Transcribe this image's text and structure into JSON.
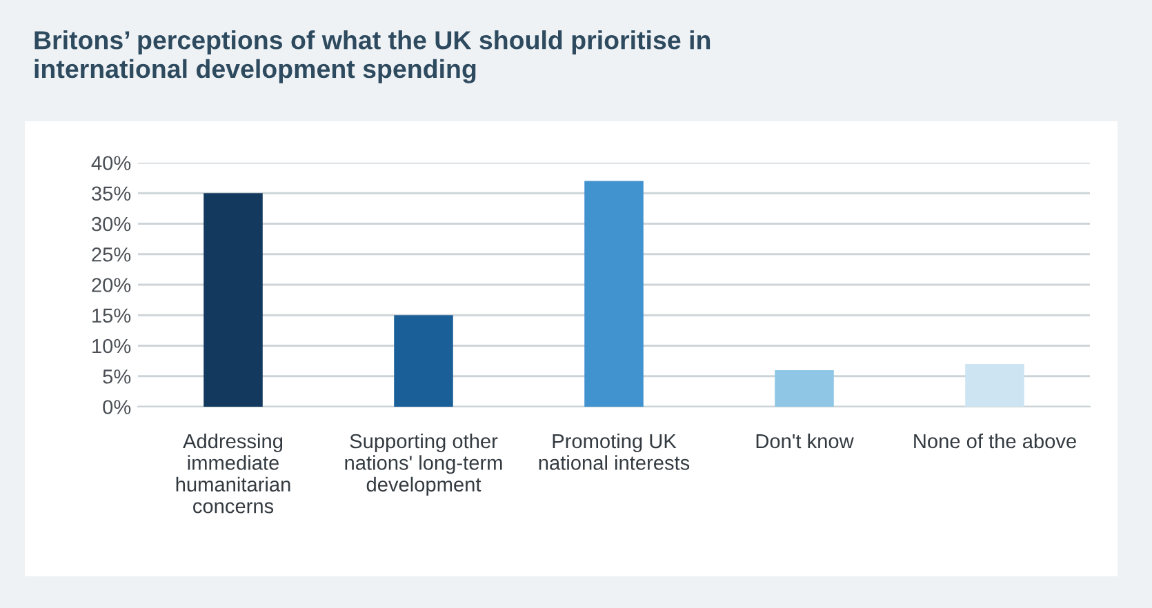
{
  "chart_data": {
    "type": "bar",
    "title": "Britons’ perceptions of what the UK should prioritise in international development spending",
    "categories": [
      "Addressing immediate humanitarian concerns",
      "Supporting other nations' long-term development",
      "Promoting UK national interests",
      "Don't know",
      "None of the above"
    ],
    "values": [
      35,
      15,
      37,
      6,
      7
    ],
    "colors": [
      "#133a5e",
      "#1b5f99",
      "#4193d0",
      "#8fc6e6",
      "#cde5f2"
    ],
    "ylim": [
      0,
      40
    ],
    "yticks": [
      {
        "value": 0,
        "label": "0%"
      },
      {
        "value": 5,
        "label": "5%"
      },
      {
        "value": 10,
        "label": "10%"
      },
      {
        "value": 15,
        "label": "15%"
      },
      {
        "value": 20,
        "label": "20%"
      },
      {
        "value": 25,
        "label": "25%"
      },
      {
        "value": 30,
        "label": "30%"
      },
      {
        "value": 35,
        "label": "35%"
      },
      {
        "value": 40,
        "label": "40%"
      }
    ],
    "grid": "y"
  }
}
